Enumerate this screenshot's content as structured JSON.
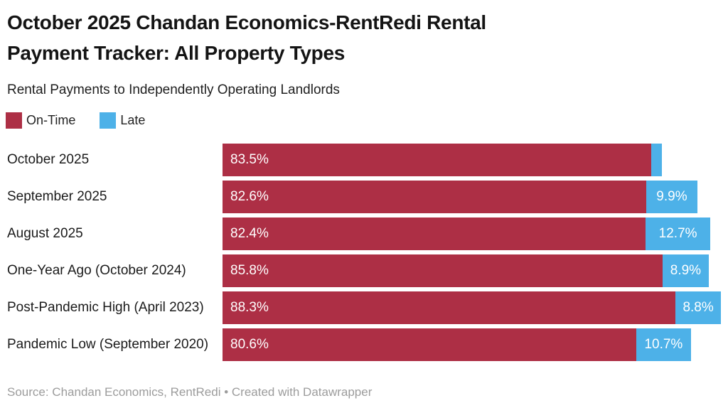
{
  "header": {
    "title": "October 2025 Chandan Economics-RentRedi Rental Payment Tracker: All Property Types",
    "title_lines": [
      "October 2025 Chandan Economics-RentRedi Rental",
      "Payment Tracker: All Property Types"
    ],
    "subtitle": "Rental Payments to Independently Operating Landlords"
  },
  "legend": {
    "items": [
      {
        "label": "On-Time",
        "color": "#AD2F45"
      },
      {
        "label": "Late",
        "color": "#4DB1E8"
      }
    ]
  },
  "chart_data": {
    "type": "bar",
    "orientation": "horizontal",
    "stacked": true,
    "unit": "%",
    "title": "October 2025 Chandan Economics-RentRedi Rental Payment Tracker: All Property Types",
    "subtitle": "Rental Payments to Independently Operating Landlords",
    "categories": [
      "October 2025",
      "September 2025",
      "August 2025",
      "One-Year Ago (October 2024)",
      "Post-Pandemic High (April 2023)",
      "Pandemic Low (September 2020)"
    ],
    "series": [
      {
        "name": "On-Time",
        "color": "#AD2F45",
        "values": [
          83.5,
          82.6,
          82.4,
          85.8,
          88.3,
          80.6
        ]
      },
      {
        "name": "Late",
        "color": "#4DB1E8",
        "values": [
          2.1,
          9.9,
          12.7,
          8.9,
          8.8,
          10.7
        ]
      }
    ],
    "rows": [
      {
        "label": "October 2025",
        "ontime": 83.5,
        "ontime_label": "83.5%",
        "late": 2.1,
        "late_label": ""
      },
      {
        "label": "September 2025",
        "ontime": 82.6,
        "ontime_label": "82.6%",
        "late": 9.9,
        "late_label": "9.9%"
      },
      {
        "label": "August 2025",
        "ontime": 82.4,
        "ontime_label": "82.4%",
        "late": 12.7,
        "late_label": "12.7%"
      },
      {
        "label": "One-Year Ago (October 2024)",
        "ontime": 85.8,
        "ontime_label": "85.8%",
        "late": 8.9,
        "late_label": "8.9%"
      },
      {
        "label": "Post-Pandemic High (April 2023)",
        "ontime": 88.3,
        "ontime_label": "88.3%",
        "late": 8.8,
        "late_label": "8.8%"
      },
      {
        "label": "Pandemic Low (September 2020)",
        "ontime": 80.6,
        "ontime_label": "80.6%",
        "late": 10.7,
        "late_label": "10.7%"
      }
    ],
    "layout": {
      "axis_max": 98.5,
      "grid": false,
      "value_label_position": "inside",
      "legend_position": "top-left",
      "note": "October 2025 late segment shown without label"
    }
  },
  "footer": {
    "source": "Source: Chandan Economics, RentRedi • Created with Datawrapper"
  }
}
